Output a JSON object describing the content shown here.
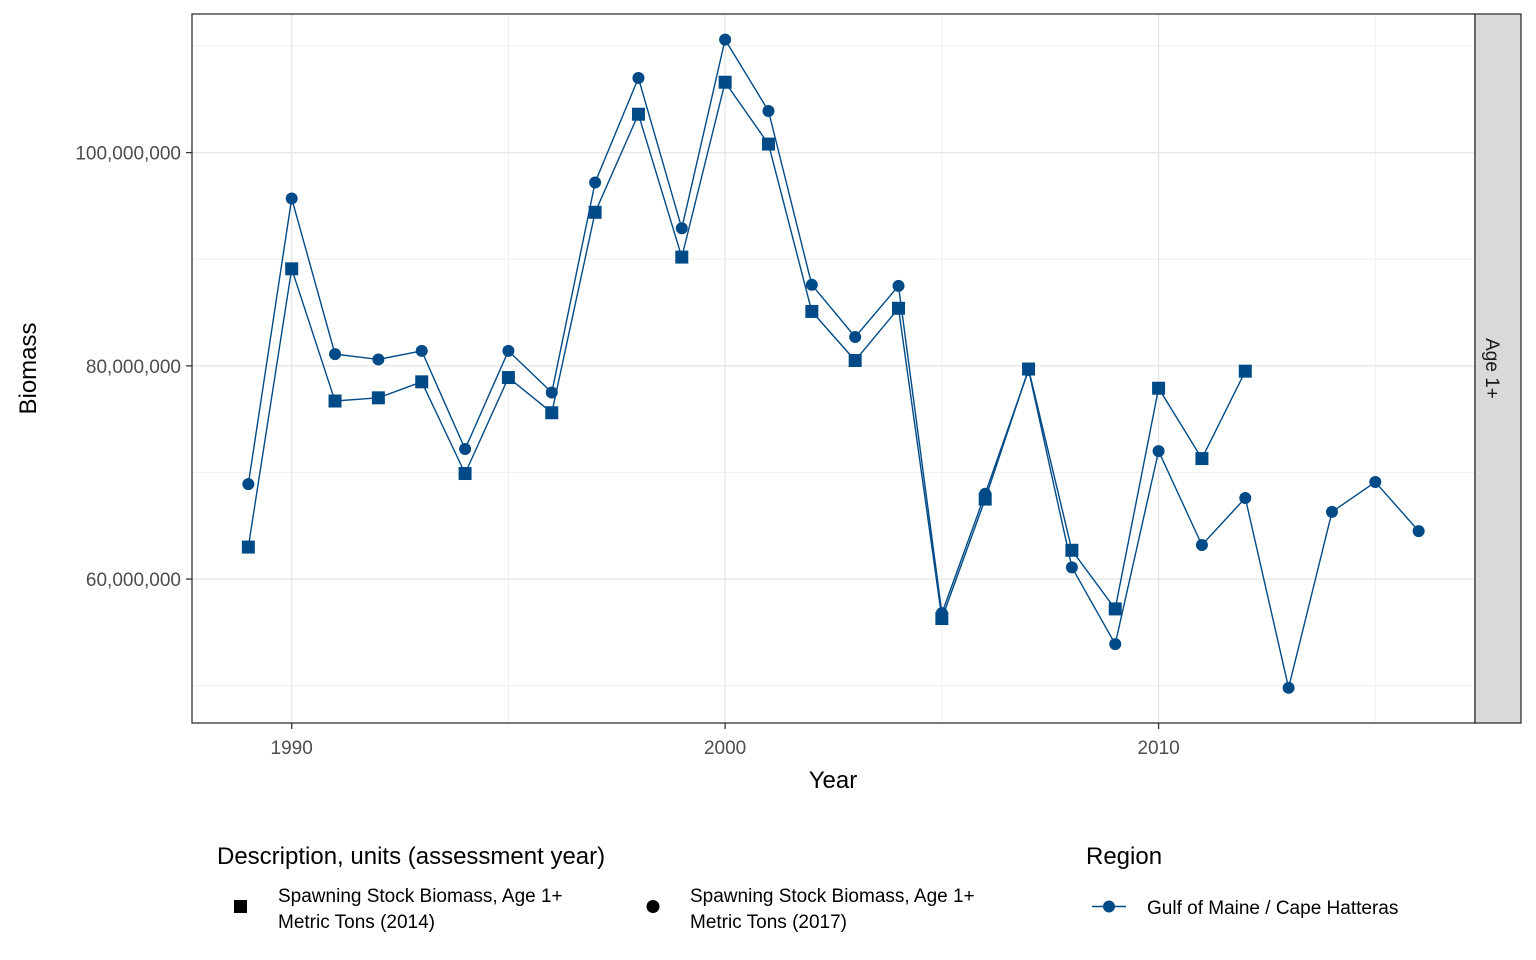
{
  "chart_data": {
    "type": "line",
    "xlabel": "Year",
    "ylabel": "Biomass",
    "xlim": [
      1987.7,
      2017.3
    ],
    "ylim": [
      46500000,
      113000000
    ],
    "x_ticks": [
      1990,
      2000,
      2010
    ],
    "x_tick_labels": [
      "1990",
      "2000",
      "2010"
    ],
    "y_ticks": [
      60000000,
      80000000,
      100000000
    ],
    "y_tick_labels": [
      "60,000,000",
      "80,000,000",
      "100,000,000"
    ],
    "grid": true,
    "facet_label": "Age 1+",
    "line_color": "#004b87",
    "legend_placement": "bottom",
    "legends": {
      "description": {
        "title": "Description, units (assessment year)",
        "items": [
          {
            "shape": "square",
            "line1": "Spawning Stock Biomass, Age 1+",
            "line2": "Metric Tons (2014)"
          },
          {
            "shape": "circle",
            "line1": "Spawning Stock Biomass, Age 1+",
            "line2": "Metric Tons (2017)"
          }
        ]
      },
      "region": {
        "title": "Region",
        "items": [
          {
            "label": "Gulf of Maine / Cape Hatteras"
          }
        ]
      }
    },
    "series": [
      {
        "marker": "square",
        "x": [
          1989,
          1990,
          1991,
          1992,
          1993,
          1994,
          1995,
          1996,
          1997,
          1998,
          1999,
          2000,
          2001,
          2002,
          2003,
          2004,
          2005,
          2006,
          2007,
          2008,
          2009,
          2010,
          2011,
          2012
        ],
        "values": [
          63000000,
          89100000,
          76700000,
          77000000,
          78500000,
          69900000,
          78900000,
          75600000,
          94400000,
          103600000,
          90200000,
          106600000,
          100800000,
          85100000,
          80500000,
          85400000,
          56300000,
          67500000,
          79700000,
          62700000,
          57200000,
          77900000,
          71300000,
          79500000
        ]
      },
      {
        "marker": "circle",
        "x": [
          1989,
          1990,
          1991,
          1992,
          1993,
          1994,
          1995,
          1996,
          1997,
          1998,
          1999,
          2000,
          2001,
          2002,
          2003,
          2004,
          2005,
          2006,
          2007,
          2008,
          2009,
          2010,
          2011,
          2012,
          2013,
          2014,
          2015,
          2016
        ],
        "values": [
          68900000,
          95700000,
          81100000,
          80600000,
          81400000,
          72200000,
          81400000,
          77500000,
          97200000,
          107000000,
          92900000,
          110600000,
          103900000,
          87600000,
          82700000,
          87500000,
          56800000,
          68000000,
          79600000,
          61100000,
          53900000,
          72000000,
          63200000,
          67600000,
          49800000,
          66300000,
          69100000,
          64500000
        ]
      }
    ]
  }
}
